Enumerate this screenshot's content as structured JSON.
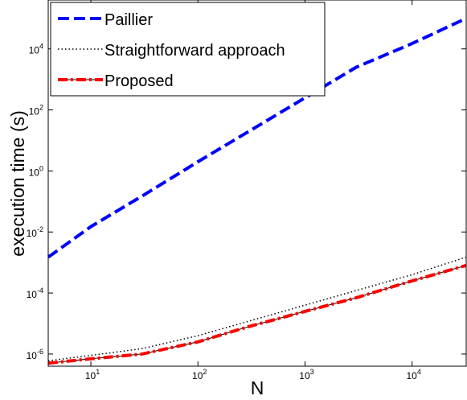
{
  "chart_data": {
    "type": "line",
    "title": "",
    "xlabel": "N",
    "ylabel": "execution time (s)",
    "xscale": "log",
    "yscale": "log",
    "xlim": [
      4,
      32000
    ],
    "ylim": [
      4e-07,
      400000.0
    ],
    "x_ticks": [
      {
        "value": 10,
        "label": "10",
        "exp": "1"
      },
      {
        "value": 100,
        "label": "10",
        "exp": "2"
      },
      {
        "value": 1000,
        "label": "10",
        "exp": "3"
      },
      {
        "value": 10000,
        "label": "10",
        "exp": "4"
      }
    ],
    "y_ticks": [
      {
        "value": 1e-06,
        "label": "10",
        "exp": "-6"
      },
      {
        "value": 0.0001,
        "label": "10",
        "exp": "-4"
      },
      {
        "value": 0.01,
        "label": "10",
        "exp": "-2"
      },
      {
        "value": 1,
        "label": "10",
        "exp": "0"
      },
      {
        "value": 100,
        "label": "10",
        "exp": "2"
      },
      {
        "value": 10000,
        "label": "10",
        "exp": "4"
      }
    ],
    "grid": false,
    "legend_position": "top-left",
    "series": [
      {
        "name": "Paillier",
        "color": "#0000ff",
        "style": "dashed",
        "x": [
          4,
          10,
          30,
          100,
          300,
          1000,
          3000,
          10000,
          32000
        ],
        "y": [
          0.0015,
          0.015,
          0.15,
          2,
          20,
          250,
          2500,
          15000,
          100000
        ]
      },
      {
        "name": "Straightforward approach",
        "color": "#000000",
        "style": "dotted",
        "x": [
          4,
          10,
          30,
          100,
          300,
          1000,
          3000,
          10000,
          32000
        ],
        "y": [
          6e-07,
          9e-07,
          1.5e-06,
          4e-06,
          1.2e-05,
          4e-05,
          0.00012,
          0.0004,
          0.0015
        ]
      },
      {
        "name": "Proposed",
        "color": "#ff0000",
        "secondary_color": "#000000",
        "style": "dashdot",
        "x": [
          4,
          10,
          30,
          100,
          300,
          1000,
          3000,
          10000,
          32000
        ],
        "y": [
          5e-07,
          7e-07,
          1e-06,
          2.5e-06,
          8e-06,
          2.5e-05,
          7e-05,
          0.00025,
          0.0008
        ]
      }
    ]
  }
}
